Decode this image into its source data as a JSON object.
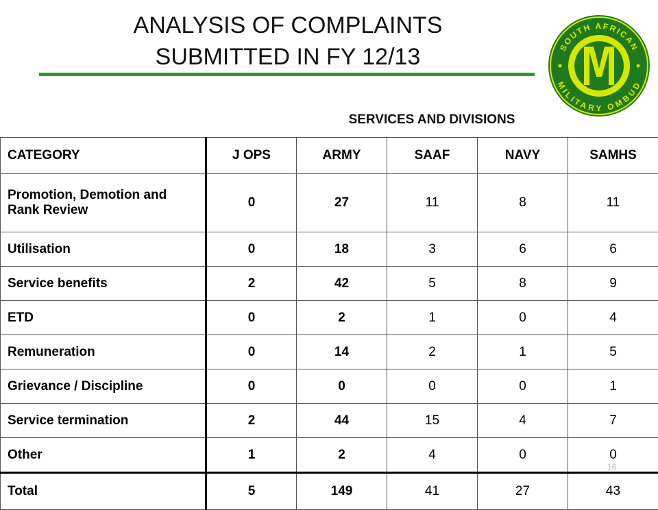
{
  "slide": {
    "title_line1": "ANALYSIS OF COMPLAINTS",
    "title_line2": "SUBMITTED IN FY 12/13",
    "page_number": "16",
    "accent_color": "#2c9a2c",
    "logo": {
      "icon": "military-ombud-seal-icon",
      "text": "SOUTH AFRICAN MILITARY OMBUD",
      "monogram": "MO"
    }
  },
  "table": {
    "group_header": "SERVICES AND DIVISIONS",
    "columns": [
      "CATEGORY",
      "J OPS",
      "ARMY",
      "SAAF",
      "NAVY",
      "SAMHS"
    ],
    "rows": [
      {
        "category": "Promotion, Demotion and Rank Review",
        "values": [
          "0",
          "27",
          "11",
          "8",
          "11"
        ]
      },
      {
        "category": "Utilisation",
        "values": [
          "0",
          "18",
          "3",
          "6",
          "6"
        ]
      },
      {
        "category": "Service benefits",
        "values": [
          "2",
          "42",
          "5",
          "8",
          "9"
        ]
      },
      {
        "category": "ETD",
        "values": [
          "0",
          "2",
          "1",
          "0",
          "4"
        ]
      },
      {
        "category": "Remuneration",
        "values": [
          "0",
          "14",
          "2",
          "1",
          "5"
        ]
      },
      {
        "category": "Grievance / Discipline",
        "values": [
          "0",
          "0",
          "0",
          "0",
          "1"
        ]
      },
      {
        "category": "Service termination",
        "values": [
          "2",
          "44",
          "15",
          "4",
          "7"
        ]
      },
      {
        "category": "Other",
        "values": [
          "1",
          "2",
          "4",
          "0",
          "0"
        ]
      }
    ],
    "total": {
      "category": "Total",
      "values": [
        "5",
        "149",
        "41",
        "27",
        "43"
      ]
    }
  }
}
